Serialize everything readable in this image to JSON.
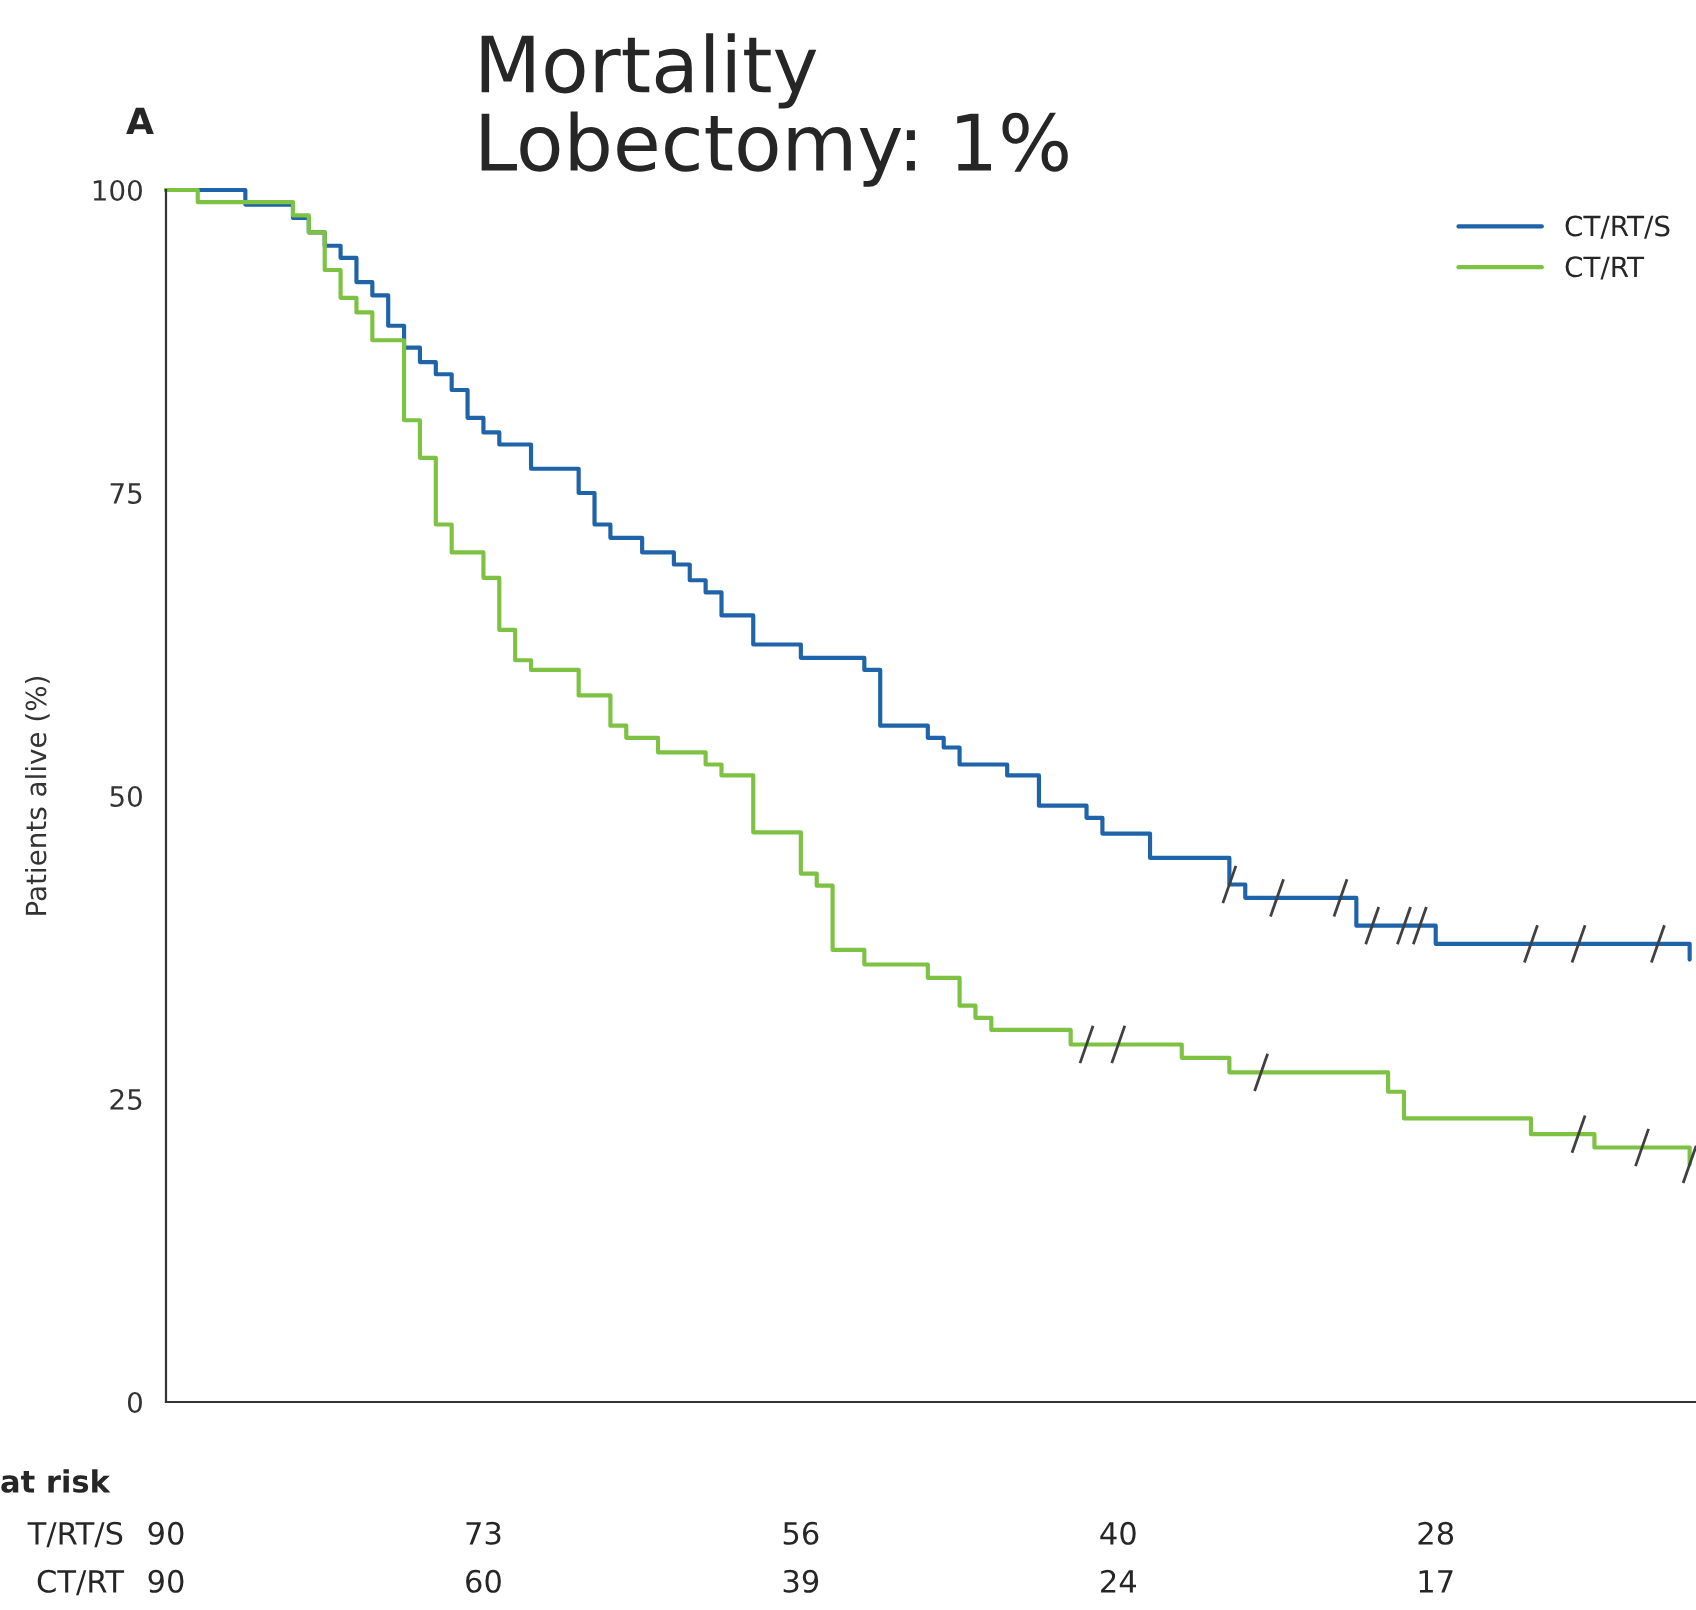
{
  "chart_data": {
    "type": "step",
    "title": "Mortality\nLobectomy: 1%",
    "ylabel": "Patients alive (%)",
    "ylim": [
      0,
      100
    ],
    "yticks": [
      0,
      25,
      50,
      75,
      100
    ],
    "grid": false,
    "legend": "top right",
    "categories": [
      null,
      null,
      null,
      null,
      null,
      null,
      null,
      null,
      null,
      null,
      null,
      null,
      null,
      null,
      null,
      null,
      null,
      null,
      null,
      null,
      null,
      null,
      null,
      null,
      null,
      null,
      null,
      null,
      null,
      null,
      null,
      null,
      null,
      null,
      null,
      null,
      null,
      null,
      null,
      null,
      null,
      null,
      null,
      null,
      null,
      null,
      null,
      null,
      null,
      null,
      null,
      null,
      null,
      null,
      null,
      null,
      null,
      null,
      null,
      null,
      null,
      null,
      null,
      null,
      null,
      null,
      null,
      null,
      null,
      null,
      null,
      null,
      null,
      null,
      null,
      null,
      null,
      null,
      null,
      null,
      null,
      null,
      null,
      null,
      null,
      null,
      null,
      null,
      null,
      null,
      null,
      null,
      null,
      null,
      null,
      null,
      null
    ],
    "series": [
      {
        "name": "CT/RT/S",
        "color": "#1f63a8",
        "values": [
          100,
          100,
          100,
          100,
          100,
          98.8,
          98.8,
          98.8,
          97.7,
          96.5,
          95.4,
          94.4,
          92.4,
          91.3,
          88.8,
          87.0,
          85.8,
          84.8,
          83.5,
          81.2,
          80.0,
          79.0,
          79.0,
          77.0,
          77.0,
          77.0,
          75.0,
          72.4,
          71.3,
          71.3,
          70.1,
          70.1,
          69.1,
          67.8,
          66.8,
          64.9,
          64.9,
          62.5,
          62.5,
          62.5,
          61.4,
          61.4,
          61.4,
          61.4,
          60.4,
          55.8,
          55.8,
          55.8,
          54.8,
          54.0,
          52.6,
          52.6,
          52.6,
          51.7,
          51.7,
          49.2,
          49.2,
          49.2,
          48.2,
          46.9,
          46.9,
          46.9,
          44.9,
          44.9,
          44.9,
          44.9,
          44.9,
          42.7,
          41.6,
          41.6,
          41.6,
          41.6,
          41.6,
          41.6,
          41.6,
          39.3,
          39.3,
          39.3,
          39.3,
          39.3,
          37.8,
          37.8,
          37.8,
          37.8,
          37.8,
          37.8,
          37.8,
          37.8,
          37.8,
          37.8,
          37.8,
          37.8,
          37.8,
          37.8,
          37.8,
          37.8,
          36.5
        ]
      },
      {
        "name": "CT/RT",
        "color": "#7dc242",
        "values": [
          100,
          100,
          99.0,
          99.0,
          99.0,
          99.0,
          99.0,
          99.0,
          97.9,
          96.5,
          93.4,
          91.1,
          89.9,
          87.6,
          87.6,
          81.0,
          77.9,
          72.4,
          70.1,
          70.1,
          68.0,
          63.7,
          61.2,
          60.4,
          60.4,
          60.4,
          58.3,
          58.3,
          55.8,
          54.8,
          54.8,
          53.6,
          53.6,
          53.6,
          52.6,
          51.7,
          51.7,
          47.0,
          47.0,
          47.0,
          43.6,
          42.6,
          37.3,
          37.3,
          36.1,
          36.1,
          36.1,
          36.1,
          35.0,
          35.0,
          32.7,
          31.7,
          30.7,
          30.7,
          30.7,
          30.7,
          30.7,
          29.5,
          29.5,
          29.5,
          29.5,
          29.5,
          29.5,
          29.5,
          28.4,
          28.4,
          28.4,
          27.2,
          27.2,
          27.2,
          27.2,
          27.2,
          27.2,
          27.2,
          27.2,
          27.2,
          27.2,
          25.6,
          23.4,
          23.4,
          23.4,
          23.4,
          23.4,
          23.4,
          23.4,
          23.4,
          22.1,
          22.1,
          22.1,
          22.1,
          21.0,
          21.0,
          21.0,
          21.0,
          21.0,
          21.0,
          19.6
        ]
      },
      {
        "type": "scatter",
        "color": "#404040",
        "values": [
          null,
          null,
          null,
          null,
          null,
          null,
          null,
          null,
          null,
          null,
          null,
          null,
          null,
          null,
          null,
          null,
          null,
          null,
          null,
          null,
          null,
          null,
          null,
          null,
          null,
          null,
          null,
          null,
          null,
          null,
          null,
          null,
          null,
          null,
          null,
          null,
          null,
          null,
          null,
          null,
          null,
          null,
          null,
          null,
          null,
          null,
          null,
          null,
          null,
          null,
          null,
          null,
          null,
          null,
          null,
          null,
          null,
          null,
          null,
          null,
          null,
          null,
          null,
          null,
          null,
          null,
          null,
          42.7,
          null,
          null,
          41.6,
          null,
          null,
          null,
          41.6,
          null,
          39.3,
          null,
          39.3,
          39.3,
          null,
          null,
          null,
          null,
          null,
          null,
          37.8,
          null,
          null,
          37.8,
          null,
          null,
          null,
          null,
          37.8,
          null,
          null
        ]
      },
      {
        "type": "scatter",
        "color": "#404040",
        "values": [
          null,
          null,
          null,
          null,
          null,
          null,
          null,
          null,
          null,
          null,
          null,
          null,
          null,
          null,
          null,
          null,
          null,
          null,
          null,
          null,
          null,
          null,
          null,
          null,
          null,
          null,
          null,
          null,
          null,
          null,
          null,
          null,
          null,
          null,
          null,
          null,
          null,
          null,
          null,
          null,
          null,
          null,
          null,
          null,
          null,
          null,
          null,
          null,
          null,
          null,
          null,
          null,
          null,
          null,
          null,
          null,
          null,
          null,
          29.5,
          null,
          29.5,
          null,
          null,
          null,
          null,
          null,
          null,
          null,
          null,
          27.2,
          null,
          null,
          null,
          null,
          null,
          null,
          null,
          null,
          null,
          null,
          null,
          null,
          null,
          null,
          null,
          null,
          null,
          null,
          null,
          22.1,
          null,
          null,
          null,
          21.0,
          null,
          null,
          19.6
        ]
      }
    ],
    "annotations": [
      "A",
      "at risk",
      "T/RT/S",
      "90",
      "73",
      "56",
      "40",
      "28",
      "CT/RT",
      "90",
      "60",
      "39",
      "24",
      "17"
    ]
  }
}
